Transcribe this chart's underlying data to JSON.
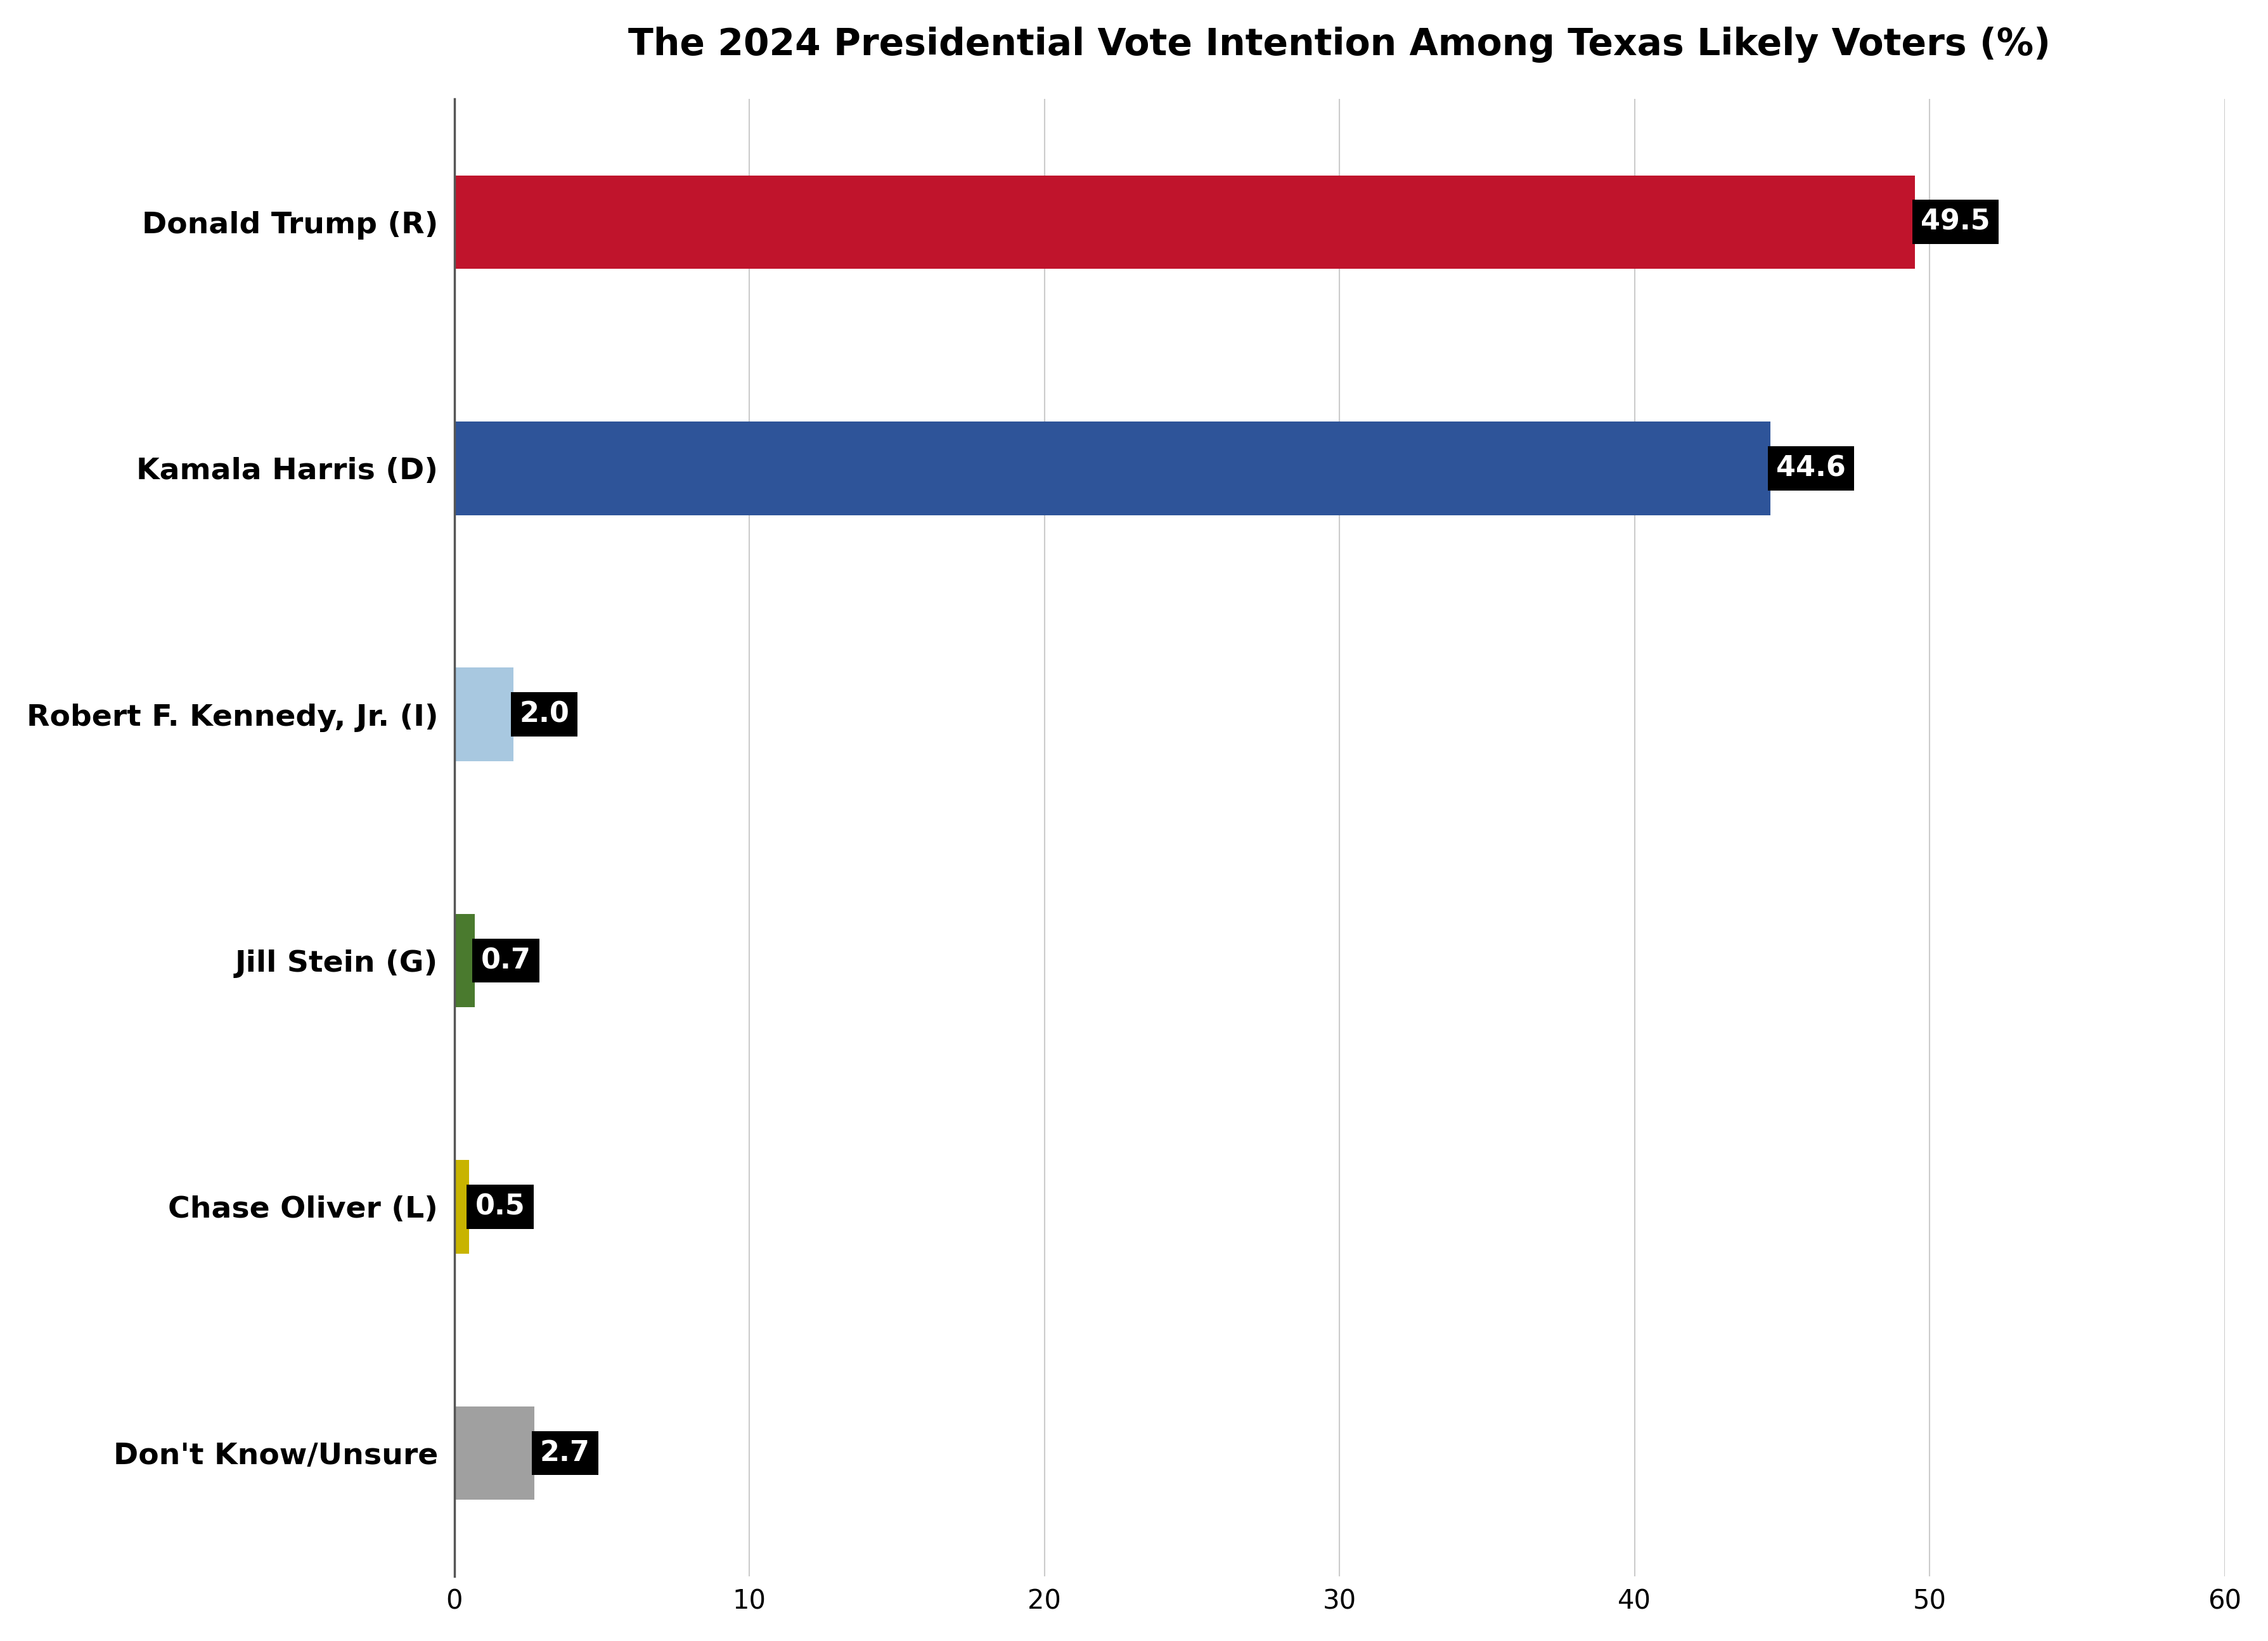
{
  "title": "The 2024 Presidential Vote Intention Among Texas Likely Voters (%)",
  "categories": [
    "Donald Trump (R)",
    "Kamala Harris (D)",
    "Robert F. Kennedy, Jr. (I)",
    "Jill Stein (G)",
    "Chase Oliver (L)",
    "Don't Know/Unsure"
  ],
  "values": [
    49.5,
    44.6,
    2.0,
    0.7,
    0.5,
    2.7
  ],
  "bar_colors": [
    "#C0142C",
    "#2E5499",
    "#A8C8E0",
    "#4A7A2E",
    "#C8B400",
    "#A0A0A0"
  ],
  "label_values": [
    "49.5",
    "44.6",
    "2.0",
    "0.7",
    "0.5",
    "2.7"
  ],
  "xlim": [
    0,
    60
  ],
  "xticks": [
    0,
    10,
    20,
    30,
    40,
    50,
    60
  ],
  "background_color": "#FFFFFF",
  "title_fontsize": 42,
  "label_fontsize": 34,
  "tick_fontsize": 30,
  "bar_label_fontsize": 32,
  "bar_height": 0.38,
  "bar_spacing": 1.0
}
